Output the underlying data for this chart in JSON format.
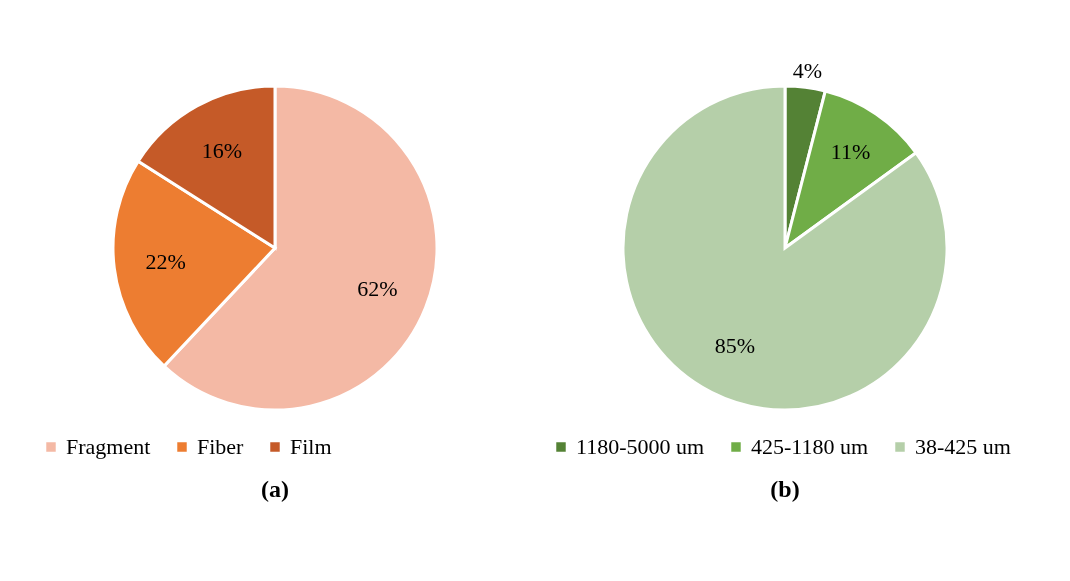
{
  "chart_data": [
    {
      "type": "pie",
      "title": "(a)",
      "categories": [
        "Fragment",
        "Fiber",
        "Film"
      ],
      "values": [
        62,
        22,
        16
      ],
      "colors": [
        "#f4b9a5",
        "#ed7d31",
        "#c55a28"
      ],
      "value_labels": [
        "62%",
        "22%",
        "16%"
      ],
      "legend": "bottom"
    },
    {
      "type": "pie",
      "title": "(b)",
      "categories": [
        "1180-5000 um",
        "425-1180 um",
        "38-425 um"
      ],
      "values": [
        4,
        11,
        85
      ],
      "colors": [
        "#548235",
        "#70ad47",
        "#b5cfa9"
      ],
      "value_labels": [
        "4%",
        "11%",
        "85%"
      ],
      "legend": "bottom"
    }
  ]
}
